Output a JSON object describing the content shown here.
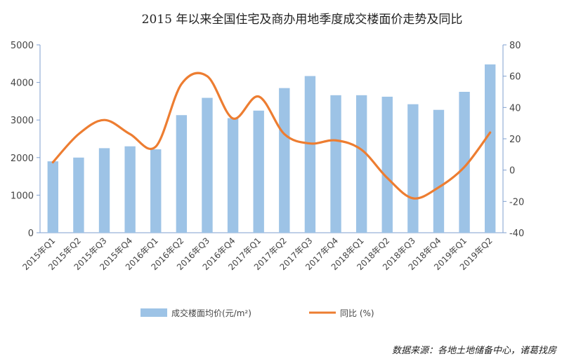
{
  "chart_data": {
    "type": "bar+line",
    "title": "2015 年以来全国住宅及商办用地季度成交楼面价走势及同比",
    "categories": [
      "2015年Q1",
      "2015年Q2",
      "2015年Q3",
      "2015年Q4",
      "2016年Q1",
      "2016年Q2",
      "2016年Q3",
      "2016年Q4",
      "2017年Q1",
      "2017年Q2",
      "2017年Q3",
      "2017年Q4",
      "2018年Q1",
      "2018年Q2",
      "2018年Q3",
      "2018年Q4",
      "2019年Q1",
      "2019年Q2"
    ],
    "series": [
      {
        "name": "成交楼面均价(元/m²)",
        "type": "bar",
        "axis": "left",
        "color": "#9dc3e6",
        "values": [
          1900,
          2000,
          2250,
          2300,
          2220,
          3130,
          3590,
          3050,
          3250,
          3850,
          4170,
          3660,
          3660,
          3620,
          3420,
          3270,
          3750,
          4480
        ]
      },
      {
        "name": "同比 (%)",
        "type": "line",
        "axis": "right",
        "color": "#ed7d31",
        "values": [
          5,
          23,
          32,
          23,
          15,
          55,
          60,
          33,
          47,
          23,
          17,
          19,
          13,
          -5,
          -18,
          -11,
          2,
          24
        ]
      }
    ],
    "y_left": {
      "min": 0,
      "max": 5000,
      "ticks": [
        0,
        1000,
        2000,
        3000,
        4000,
        5000
      ]
    },
    "y_right": {
      "min": -40,
      "max": 80,
      "ticks": [
        -40,
        -20,
        0,
        20,
        40,
        60,
        80
      ]
    },
    "grid": false,
    "legend_position": "bottom"
  },
  "source": "数据来源：各地土地储备中心，诸葛找房"
}
